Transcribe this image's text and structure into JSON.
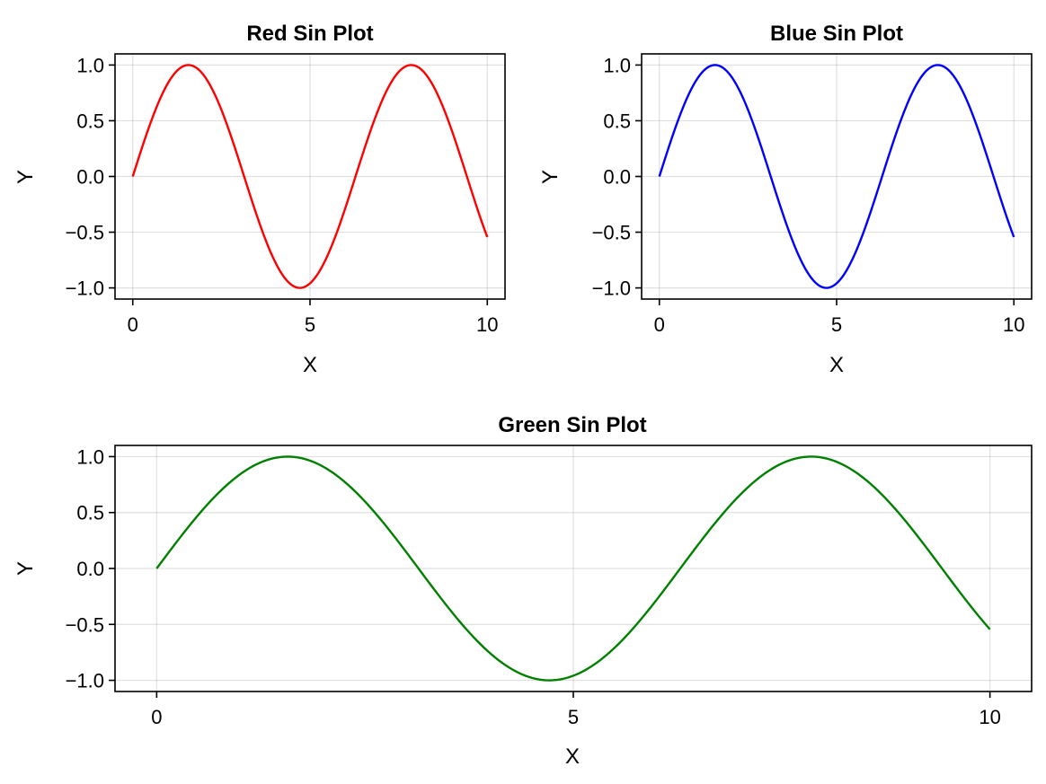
{
  "chart_data": [
    {
      "type": "line",
      "title": "Red Sin Plot",
      "xlabel": "X",
      "ylabel": "Y",
      "xlim": [
        -0.5,
        10.5
      ],
      "ylim": [
        -1.1,
        1.1
      ],
      "xticks": [
        0,
        5,
        10
      ],
      "xtick_labels": [
        "0",
        "5",
        "10"
      ],
      "yticks": [
        1.0,
        0.5,
        0.0,
        -0.5,
        -1.0
      ],
      "ytick_labels": [
        "1.0",
        "0.5",
        "0.0",
        "−0.5",
        "−1.0"
      ],
      "grid": true,
      "series": [
        {
          "color": "#ff0000",
          "function": "sin(x)",
          "x_range": [
            0,
            10
          ],
          "x": [
            0,
            0.5,
            1.0,
            1.5708,
            2.0,
            2.5,
            3.0,
            3.5,
            4.0,
            4.5,
            4.7124,
            5.0,
            5.5,
            6.0,
            6.5,
            7.0,
            7.5,
            7.854,
            8.5,
            9.0,
            9.5,
            10.0
          ],
          "y": [
            0.0,
            0.48,
            0.84,
            1.0,
            0.91,
            0.6,
            0.14,
            -0.35,
            -0.76,
            -0.98,
            -1.0,
            -0.96,
            -0.71,
            -0.28,
            0.22,
            0.66,
            0.94,
            1.0,
            0.8,
            0.41,
            -0.08,
            -0.54
          ]
        }
      ]
    },
    {
      "type": "line",
      "title": "Blue Sin Plot",
      "xlabel": "X",
      "ylabel": "Y",
      "xlim": [
        -0.5,
        10.5
      ],
      "ylim": [
        -1.1,
        1.1
      ],
      "xticks": [
        0,
        5,
        10
      ],
      "xtick_labels": [
        "0",
        "5",
        "10"
      ],
      "yticks": [
        1.0,
        0.5,
        0.0,
        -0.5,
        -1.0
      ],
      "ytick_labels": [
        "1.0",
        "0.5",
        "0.0",
        "−0.5",
        "−1.0"
      ],
      "grid": true,
      "series": [
        {
          "color": "#0000ff",
          "function": "sin(x)",
          "x_range": [
            0,
            10
          ],
          "x": [
            0,
            0.5,
            1.0,
            1.5708,
            2.0,
            2.5,
            3.0,
            3.5,
            4.0,
            4.5,
            4.7124,
            5.0,
            5.5,
            6.0,
            6.5,
            7.0,
            7.5,
            7.854,
            8.5,
            9.0,
            9.5,
            10.0
          ],
          "y": [
            0.0,
            0.48,
            0.84,
            1.0,
            0.91,
            0.6,
            0.14,
            -0.35,
            -0.76,
            -0.98,
            -1.0,
            -0.96,
            -0.71,
            -0.28,
            0.22,
            0.66,
            0.94,
            1.0,
            0.8,
            0.41,
            -0.08,
            -0.54
          ]
        }
      ]
    },
    {
      "type": "line",
      "title": "Green Sin Plot",
      "xlabel": "X",
      "ylabel": "Y",
      "xlim": [
        -0.5,
        10.5
      ],
      "ylim": [
        -1.1,
        1.1
      ],
      "xticks": [
        0,
        5,
        10
      ],
      "xtick_labels": [
        "0",
        "5",
        "10"
      ],
      "yticks": [
        1.0,
        0.5,
        0.0,
        -0.5,
        -1.0
      ],
      "ytick_labels": [
        "1.0",
        "0.5",
        "0.0",
        "−0.5",
        "−1.0"
      ],
      "grid": true,
      "series": [
        {
          "color": "#008000",
          "function": "sin(x)",
          "x_range": [
            0,
            10
          ],
          "x": [
            0,
            0.5,
            1.0,
            1.5708,
            2.0,
            2.5,
            3.0,
            3.5,
            4.0,
            4.5,
            4.7124,
            5.0,
            5.5,
            6.0,
            6.5,
            7.0,
            7.5,
            7.854,
            8.5,
            9.0,
            9.5,
            10.0
          ],
          "y": [
            0.0,
            0.48,
            0.84,
            1.0,
            0.91,
            0.6,
            0.14,
            -0.35,
            -0.76,
            -0.98,
            -1.0,
            -0.96,
            -0.71,
            -0.28,
            0.22,
            0.66,
            0.94,
            1.0,
            0.8,
            0.41,
            -0.08,
            -0.54
          ]
        }
      ]
    }
  ]
}
